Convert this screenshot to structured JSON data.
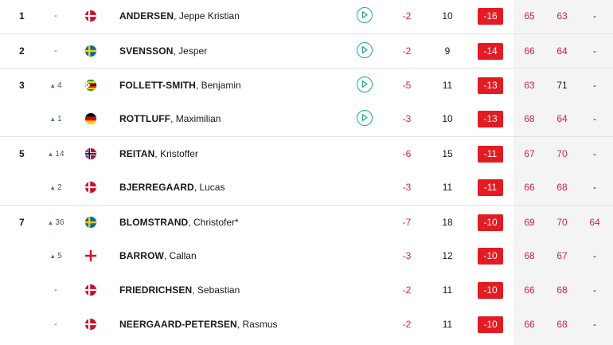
{
  "colors": {
    "under_par": "#d3263a",
    "total_badge": "#e31b23",
    "play_button": "#25a79b",
    "movement_up": "#3a8f4e",
    "rounds_background": "#f4f4f4"
  },
  "players": [
    {
      "pos": "1",
      "movement": "-",
      "movement_dir": "none",
      "flag": "denmark",
      "last": "ANDERSEN",
      "first": "Jeppe Kristian",
      "has_video": true,
      "today": "-2",
      "thru": "10",
      "total": "-16",
      "r1": "65",
      "r2": "63",
      "r2_under": true,
      "r3": "-",
      "r3_under": false,
      "group_start": true
    },
    {
      "pos": "2",
      "movement": "-",
      "movement_dir": "none",
      "flag": "sweden",
      "last": "SVENSSON",
      "first": "Jesper",
      "has_video": true,
      "today": "-2",
      "thru": "9",
      "total": "-14",
      "r1": "66",
      "r2": "64",
      "r2_under": true,
      "r3": "-",
      "r3_under": false,
      "group_start": true
    },
    {
      "pos": "3",
      "movement": "4",
      "movement_dir": "up",
      "flag": "zimbabwe",
      "last": "FOLLETT-SMITH",
      "first": "Benjamin",
      "has_video": true,
      "today": "-5",
      "thru": "11",
      "total": "-13",
      "r1": "63",
      "r2": "71",
      "r2_under": false,
      "r3": "-",
      "r3_under": false,
      "group_start": true
    },
    {
      "pos": "",
      "movement": "1",
      "movement_dir": "up",
      "flag": "germany",
      "last": "ROTTLUFF",
      "first": "Maximilian",
      "has_video": true,
      "today": "-3",
      "thru": "10",
      "total": "-13",
      "r1": "68",
      "r2": "64",
      "r2_under": true,
      "r3": "-",
      "r3_under": false,
      "group_start": false
    },
    {
      "pos": "5",
      "movement": "14",
      "movement_dir": "up",
      "flag": "norway",
      "last": "REITAN",
      "first": "Kristoffer",
      "has_video": false,
      "today": "-6",
      "thru": "15",
      "total": "-11",
      "r1": "67",
      "r2": "70",
      "r2_under": true,
      "r3": "-",
      "r3_under": false,
      "group_start": true
    },
    {
      "pos": "",
      "movement": "2",
      "movement_dir": "up",
      "flag": "denmark",
      "last": "BJERREGAARD",
      "first": "Lucas",
      "has_video": false,
      "today": "-3",
      "thru": "11",
      "total": "-11",
      "r1": "66",
      "r2": "68",
      "r2_under": true,
      "r3": "-",
      "r3_under": false,
      "group_start": false
    },
    {
      "pos": "7",
      "movement": "36",
      "movement_dir": "up",
      "flag": "sweden",
      "last": "BLOMSTRAND",
      "first": "Christofer*",
      "has_video": false,
      "today": "-7",
      "thru": "18",
      "total": "-10",
      "r1": "69",
      "r2": "70",
      "r2_under": true,
      "r3": "64",
      "r3_under": true,
      "group_start": true
    },
    {
      "pos": "",
      "movement": "5",
      "movement_dir": "up",
      "flag": "england",
      "last": "BARROW",
      "first": "Callan",
      "has_video": false,
      "today": "-3",
      "thru": "12",
      "total": "-10",
      "r1": "68",
      "r2": "67",
      "r2_under": true,
      "r3": "-",
      "r3_under": false,
      "group_start": false
    },
    {
      "pos": "",
      "movement": "-",
      "movement_dir": "none",
      "flag": "denmark",
      "last": "FRIEDRICHSEN",
      "first": "Sebastian",
      "has_video": false,
      "today": "-2",
      "thru": "11",
      "total": "-10",
      "r1": "66",
      "r2": "68",
      "r2_under": true,
      "r3": "-",
      "r3_under": false,
      "group_start": false
    },
    {
      "pos": "",
      "movement": "-",
      "movement_dir": "none",
      "flag": "denmark",
      "last": "NEERGAARD-PETERSEN",
      "first": "Rasmus",
      "has_video": false,
      "today": "-2",
      "thru": "11",
      "total": "-10",
      "r1": "66",
      "r2": "68",
      "r2_under": true,
      "r3": "-",
      "r3_under": false,
      "group_start": false
    }
  ]
}
